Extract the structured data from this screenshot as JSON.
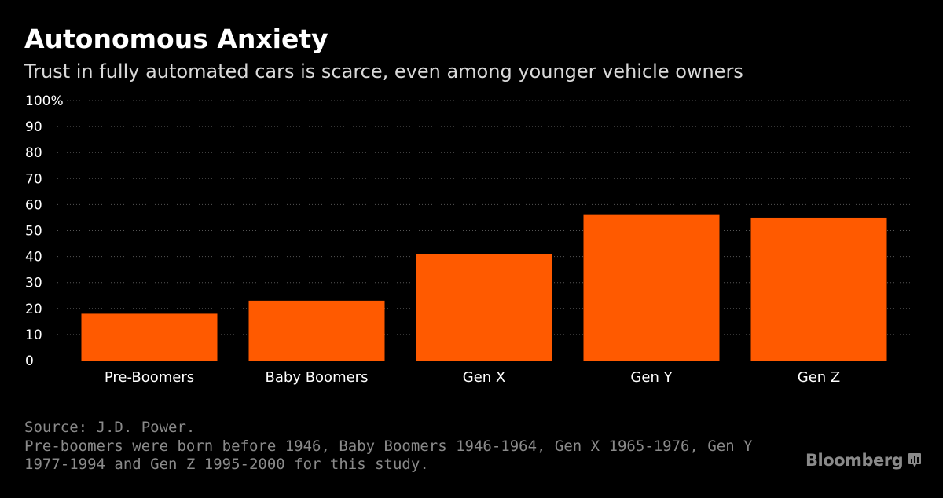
{
  "title": "Autonomous Anxiety",
  "subtitle": "Trust in fully automated cars is scarce, even among younger vehicle owners",
  "source": "Source: J.D. Power.",
  "note_lines": [
    "Pre-boomers were born before 1946, Baby Boomers 1946-1964, Gen X 1965-1976, Gen Y",
    "1977-1994 and Gen Z 1995-2000 for this study."
  ],
  "brand": "Bloomberg",
  "brand_icon": "bloomberg-chart-icon",
  "colors": {
    "background": "#000000",
    "bar": "#ff5a00",
    "grid": "#555555",
    "text": "#ffffff",
    "muted": "#8a8a8a"
  },
  "chart_data": {
    "type": "bar",
    "categories": [
      "Pre-Boomers",
      "Baby Boomers",
      "Gen X",
      "Gen Y",
      "Gen Z"
    ],
    "values": [
      18,
      23,
      41,
      56,
      55
    ],
    "ylim": [
      0,
      100
    ],
    "yticks": [
      0,
      10,
      20,
      30,
      40,
      50,
      60,
      70,
      80,
      90,
      100
    ],
    "ytick_labels": [
      "0",
      "10",
      "20",
      "30",
      "40",
      "50",
      "60",
      "70",
      "80",
      "90",
      "100%"
    ],
    "grid": true,
    "grid_style": "dotted",
    "legend": "none"
  }
}
